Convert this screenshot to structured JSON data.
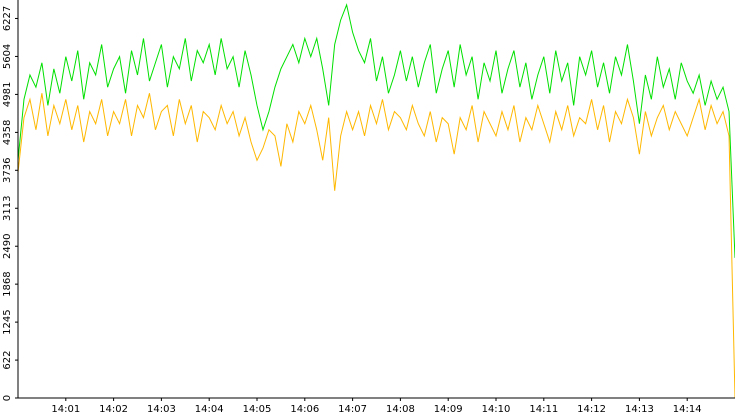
{
  "chart_data": {
    "type": "line",
    "x": [
      0,
      0.125,
      0.25,
      0.375,
      0.5,
      0.625,
      0.75,
      0.875,
      1,
      1.125,
      1.25,
      1.375,
      1.5,
      1.625,
      1.75,
      1.875,
      2,
      2.125,
      2.25,
      2.375,
      2.5,
      2.625,
      2.75,
      2.875,
      3,
      3.125,
      3.25,
      3.375,
      3.5,
      3.625,
      3.75,
      3.875,
      4,
      4.125,
      4.25,
      4.375,
      4.5,
      4.625,
      4.75,
      4.875,
      5,
      5.125,
      5.25,
      5.375,
      5.5,
      5.625,
      5.75,
      5.875,
      6,
      6.125,
      6.25,
      6.375,
      6.5,
      6.625,
      6.75,
      6.875,
      7,
      7.125,
      7.25,
      7.375,
      7.5,
      7.625,
      7.75,
      7.875,
      8,
      8.125,
      8.25,
      8.375,
      8.5,
      8.625,
      8.75,
      8.875,
      9,
      9.125,
      9.25,
      9.375,
      9.5,
      9.625,
      9.75,
      9.875,
      10,
      10.125,
      10.25,
      10.375,
      10.5,
      10.625,
      10.75,
      10.875,
      11,
      11.125,
      11.25,
      11.375,
      11.5,
      11.625,
      11.75,
      11.875,
      12,
      12.125,
      12.25,
      12.375,
      12.5,
      12.625,
      12.75,
      12.875,
      13,
      13.125,
      13.25,
      13.375,
      13.5,
      13.625,
      13.75,
      13.875,
      14,
      14.125,
      14.25,
      14.375,
      14.5,
      14.625,
      14.75,
      14.875,
      15
    ],
    "series": [
      {
        "color": "#00e000",
        "values": [
          3900,
          4900,
          5300,
          5100,
          5500,
          4800,
          5400,
          5000,
          5600,
          5200,
          5700,
          4900,
          5500,
          5300,
          5800,
          5100,
          5400,
          5600,
          5000,
          5700,
          5300,
          5900,
          5200,
          5500,
          5800,
          5100,
          5600,
          5400,
          5900,
          5200,
          5700,
          5500,
          5800,
          5300,
          5900,
          5400,
          5600,
          5100,
          5700,
          5300,
          4800,
          4400,
          4700,
          5100,
          5400,
          5600,
          5800,
          5500,
          5900,
          5600,
          5900,
          5400,
          4800,
          5800,
          6200,
          6450,
          6000,
          5700,
          5500,
          5900,
          5200,
          5600,
          5000,
          5300,
          5700,
          5200,
          5600,
          5100,
          5500,
          5800,
          5000,
          5400,
          5700,
          5100,
          5800,
          5300,
          5600,
          4900,
          5500,
          5200,
          5700,
          5000,
          5400,
          5700,
          5100,
          5500,
          4900,
          5300,
          5600,
          5000,
          5700,
          5200,
          5500,
          4800,
          5600,
          5300,
          5700,
          5100,
          5500,
          5000,
          5600,
          5300,
          5800,
          5200,
          4500,
          5300,
          4900,
          5600,
          5100,
          5400,
          4900,
          5500,
          5200,
          5000,
          5300,
          4800,
          5200,
          4900,
          5100,
          4700,
          2300
        ]
      },
      {
        "color": "#ffb800",
        "values": [
          3700,
          4600,
          4900,
          4400,
          5000,
          4300,
          4800,
          4500,
          4900,
          4400,
          4800,
          4200,
          4700,
          4500,
          4900,
          4300,
          4700,
          4500,
          4900,
          4300,
          4800,
          4600,
          5000,
          4400,
          4700,
          4800,
          4300,
          4900,
          4500,
          4800,
          4200,
          4700,
          4600,
          4400,
          4800,
          4500,
          4700,
          4300,
          4600,
          4200,
          3900,
          4100,
          4400,
          4300,
          3800,
          4500,
          4200,
          4700,
          4500,
          4800,
          4400,
          3900,
          4600,
          3400,
          4300,
          4700,
          4400,
          4700,
          4300,
          4800,
          4500,
          4900,
          4400,
          4700,
          4600,
          4400,
          4800,
          4500,
          4300,
          4700,
          4200,
          4600,
          4500,
          4000,
          4600,
          4400,
          4800,
          4200,
          4700,
          4500,
          4300,
          4700,
          4400,
          4800,
          4200,
          4600,
          4400,
          4800,
          4500,
          4200,
          4700,
          4400,
          4800,
          4300,
          4600,
          4500,
          4900,
          4400,
          4800,
          4200,
          4700,
          4500,
          4900,
          4600,
          4000,
          4700,
          4300,
          4600,
          4800,
          4400,
          4700,
          4500,
          4300,
          4600,
          4900,
          4400,
          4800,
          4500,
          4700,
          4300,
          0
        ]
      }
    ],
    "xlim": [
      0,
      15
    ],
    "xticks": [
      {
        "value": 1,
        "label": "14:01"
      },
      {
        "value": 2,
        "label": "14:02"
      },
      {
        "value": 3,
        "label": "14:03"
      },
      {
        "value": 4,
        "label": "14:04"
      },
      {
        "value": 5,
        "label": "14:05"
      },
      {
        "value": 6,
        "label": "14:06"
      },
      {
        "value": 7,
        "label": "14:07"
      },
      {
        "value": 8,
        "label": "14:08"
      },
      {
        "value": 9,
        "label": "14:09"
      },
      {
        "value": 10,
        "label": "14:10"
      },
      {
        "value": 11,
        "label": "14:11"
      },
      {
        "value": 12,
        "label": "14:12"
      },
      {
        "value": 13,
        "label": "14:13"
      },
      {
        "value": 14,
        "label": "14:14"
      }
    ],
    "ylim": [
      0,
      6530
    ],
    "yticks": [
      0,
      622,
      1245,
      1868,
      2490,
      3113,
      3736,
      4358,
      4981,
      5604,
      6227
    ]
  }
}
